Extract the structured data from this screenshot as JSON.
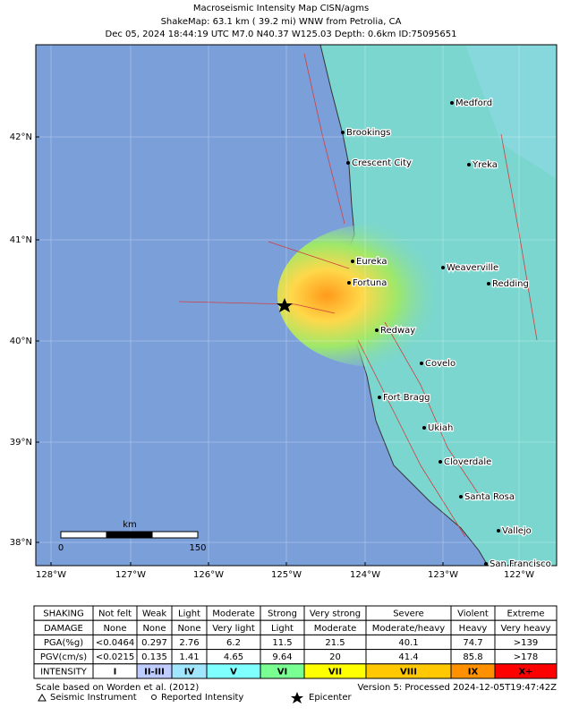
{
  "header": {
    "title": "Macroseismic Intensity Map CISN/agms",
    "subtitle": "ShakeMap: 63.1 km (  39.2 mi) WNW from Petrolia, CA",
    "details": "Dec 05, 2024 18:44:19 UTC M7.0 N40.37 W125.03 Depth: 0.6km ID:75095651"
  },
  "map": {
    "lat_labels": [
      "42°N",
      "41°N",
      "40°N",
      "39°N",
      "38°N"
    ],
    "lon_labels": [
      "128°W",
      "127°W",
      "126°W",
      "125°W",
      "124°W",
      "123°W",
      "122°W"
    ],
    "cities": [
      "Medford",
      "Brookings",
      "Crescent City",
      "Yreka",
      "Eureka",
      "Weaverville",
      "Fortuna",
      "Redding",
      "Redway",
      "Covelo",
      "Fort Bragg",
      "Ukiah",
      "Cloverdale",
      "Santa Rosa",
      "Vallejo",
      "San Francisco"
    ],
    "scale": {
      "unit": "km",
      "start": "0",
      "end": "150"
    }
  },
  "legend_table": {
    "rows": [
      [
        "SHAKING",
        "Not felt",
        "Weak",
        "Light",
        "Moderate",
        "Strong",
        "Very strong",
        "Severe",
        "Violent",
        "Extreme"
      ],
      [
        "DAMAGE",
        "None",
        "None",
        "None",
        "Very light",
        "Light",
        "Moderate",
        "Moderate/heavy",
        "Heavy",
        "Very heavy"
      ],
      [
        "PGA(%g)",
        "<0.0464",
        "0.297",
        "2.76",
        "6.2",
        "11.5",
        "21.5",
        "40.1",
        "74.7",
        ">139"
      ],
      [
        "PGV(cm/s)",
        "<0.0215",
        "0.135",
        "1.41",
        "4.65",
        "9.64",
        "20",
        "41.4",
        "85.8",
        ">178"
      ],
      [
        "INTENSITY",
        "I",
        "II-III",
        "IV",
        "V",
        "VI",
        "VII",
        "VIII",
        "IX",
        "X+"
      ]
    ],
    "intensity_colors": [
      "#ffffff",
      "#bfccff",
      "#a0e6ff",
      "#80ffff",
      "#7aff93",
      "#ffff00",
      "#ffc800",
      "#ff9100",
      "#ff0000"
    ]
  },
  "footer": {
    "scale_note": "Scale based on Worden et al. (2012)",
    "version": "Version 5: Processed 2024-12-05T19:47:42Z",
    "legend": [
      "Seismic Instrument",
      "Reported Intensity",
      "Epicenter"
    ]
  }
}
